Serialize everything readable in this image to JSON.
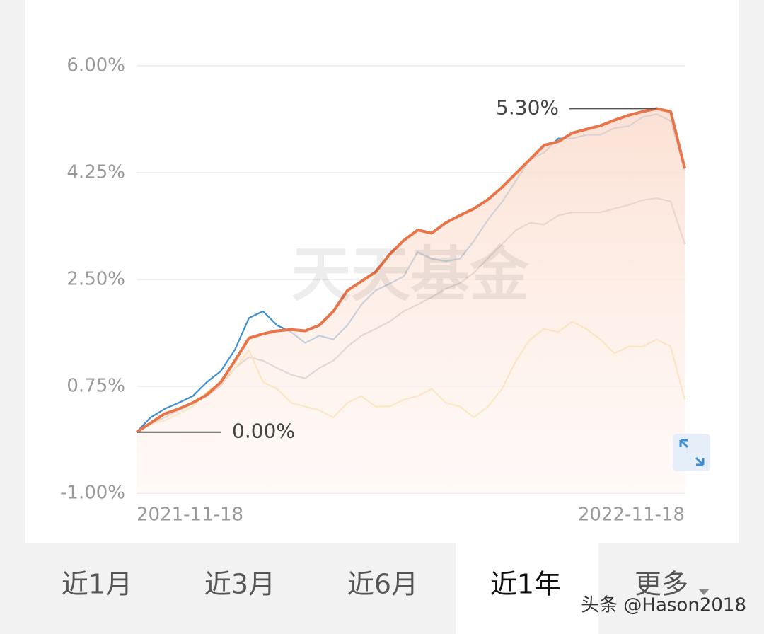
{
  "chart_data": {
    "type": "line",
    "categories": [
      "2021-11-18",
      null,
      null,
      null,
      null,
      null,
      null,
      null,
      null,
      null,
      null,
      null,
      null,
      null,
      null,
      null,
      null,
      null,
      null,
      null,
      null,
      null,
      null,
      null,
      null,
      null,
      null,
      null,
      null,
      null,
      null,
      null,
      null,
      null,
      null,
      null,
      null,
      null,
      null,
      "2022-11-18"
    ],
    "series": [
      {
        "color": "#3d8fd1",
        "values": [
          0,
          0.24,
          0.38,
          0.48,
          0.59,
          0.82,
          1.0,
          1.35,
          1.87,
          1.98,
          1.75,
          1.64,
          1.46,
          1.58,
          1.52,
          1.75,
          2.09,
          2.32,
          2.43,
          2.55,
          2.95,
          2.84,
          2.8,
          2.84,
          3.13,
          3.48,
          3.77,
          4.12,
          4.47,
          4.58,
          4.81,
          4.81,
          4.87,
          4.87,
          4.98,
          5.01,
          5.16,
          5.21,
          5.1,
          4.29
        ]
      },
      {
        "color": "#b0a4a2",
        "values": [
          0,
          0.13,
          0.24,
          0.36,
          0.48,
          0.59,
          0.76,
          1.05,
          1.23,
          1.17,
          1.05,
          0.94,
          0.88,
          1.05,
          1.17,
          1.4,
          1.58,
          1.69,
          1.81,
          1.98,
          2.09,
          2.21,
          2.35,
          2.44,
          2.61,
          2.85,
          3.08,
          3.31,
          3.43,
          3.4,
          3.55,
          3.6,
          3.6,
          3.6,
          3.66,
          3.72,
          3.8,
          3.83,
          3.78,
          3.08
        ]
      },
      {
        "color": "#f3d57a",
        "values": [
          0,
          0.13,
          0.19,
          0.3,
          0.42,
          0.65,
          0.82,
          1.05,
          1.34,
          0.82,
          0.71,
          0.48,
          0.42,
          0.36,
          0.24,
          0.48,
          0.59,
          0.42,
          0.42,
          0.53,
          0.59,
          0.71,
          0.48,
          0.42,
          0.24,
          0.42,
          0.71,
          1.17,
          1.52,
          1.69,
          1.64,
          1.81,
          1.69,
          1.52,
          1.29,
          1.4,
          1.4,
          1.52,
          1.4,
          0.53
        ]
      },
      {
        "color": "#e8744a",
        "area": true,
        "values": [
          0,
          0.15,
          0.3,
          0.38,
          0.48,
          0.61,
          0.82,
          1.17,
          1.54,
          1.61,
          1.66,
          1.68,
          1.66,
          1.75,
          1.98,
          2.32,
          2.47,
          2.62,
          2.91,
          3.14,
          3.31,
          3.26,
          3.43,
          3.55,
          3.66,
          3.81,
          4.01,
          4.24,
          4.47,
          4.7,
          4.76,
          4.9,
          4.96,
          5.02,
          5.11,
          5.19,
          5.25,
          5.3,
          5.25,
          4.32
        ]
      }
    ],
    "ylim": [
      -1,
      6
    ],
    "yticks": [
      {
        "value": 6,
        "label": "6.00%"
      },
      {
        "value": 4.25,
        "label": "4.25%"
      },
      {
        "value": 2.5,
        "label": "2.50%"
      },
      {
        "value": 0.75,
        "label": "0.75%"
      },
      {
        "value": -1,
        "label": "-1.00%"
      }
    ],
    "grid": true,
    "annotations": [
      {
        "value": 5.3,
        "label": "5.30%",
        "index": 37
      },
      {
        "value": 0,
        "label": "0.00%",
        "index": 0
      }
    ],
    "watermark": "天天基金"
  },
  "tabs": [
    "近1月",
    "近3月",
    "近6月",
    "近1年",
    "更多"
  ],
  "selected_tab": 3,
  "credit": "头条 @Hason2018"
}
